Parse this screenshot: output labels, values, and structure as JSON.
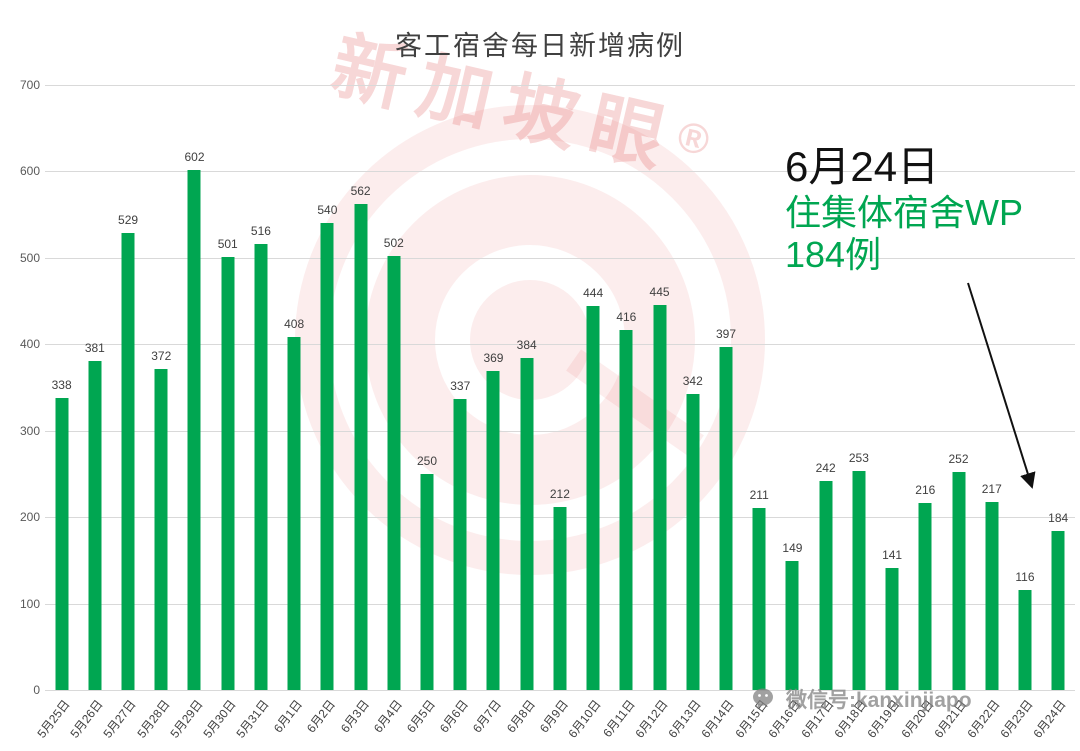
{
  "title": "客工宿舍每日新增病例",
  "watermark": {
    "brand": "新加坡眼",
    "reg": "®",
    "wechat": "微信号:kanxinjiapo"
  },
  "annotation": {
    "line1": "6月24日",
    "line2": "住集体宿舍WP",
    "line3": "184例"
  },
  "chart_data": {
    "type": "bar",
    "title": "客工宿舍每日新增病例",
    "categories": [
      "5月25日",
      "5月26日",
      "5月27日",
      "5月28日",
      "5月29日",
      "5月30日",
      "5月31日",
      "6月1日",
      "6月2日",
      "6月3日",
      "6月4日",
      "6月5日",
      "6月6日",
      "6月7日",
      "6月8日",
      "6月9日",
      "6月10日",
      "6月11日",
      "6月12日",
      "6月13日",
      "6月14日",
      "6月15日",
      "6月16日",
      "6月17日",
      "6月18日",
      "6月19日",
      "6月20日",
      "6月21日",
      "6月22日",
      "6月23日",
      "6月24日"
    ],
    "values": [
      338,
      381,
      529,
      372,
      602,
      501,
      516,
      408,
      540,
      562,
      502,
      250,
      337,
      369,
      384,
      212,
      444,
      416,
      445,
      342,
      397,
      211,
      149,
      242,
      253,
      141,
      216,
      252,
      217,
      116,
      184
    ],
    "xlabel": "",
    "ylabel": "",
    "ylim": [
      0,
      700
    ],
    "ytick_interval": 100,
    "grid": true,
    "legend": false,
    "bar_color": "#00A651"
  }
}
